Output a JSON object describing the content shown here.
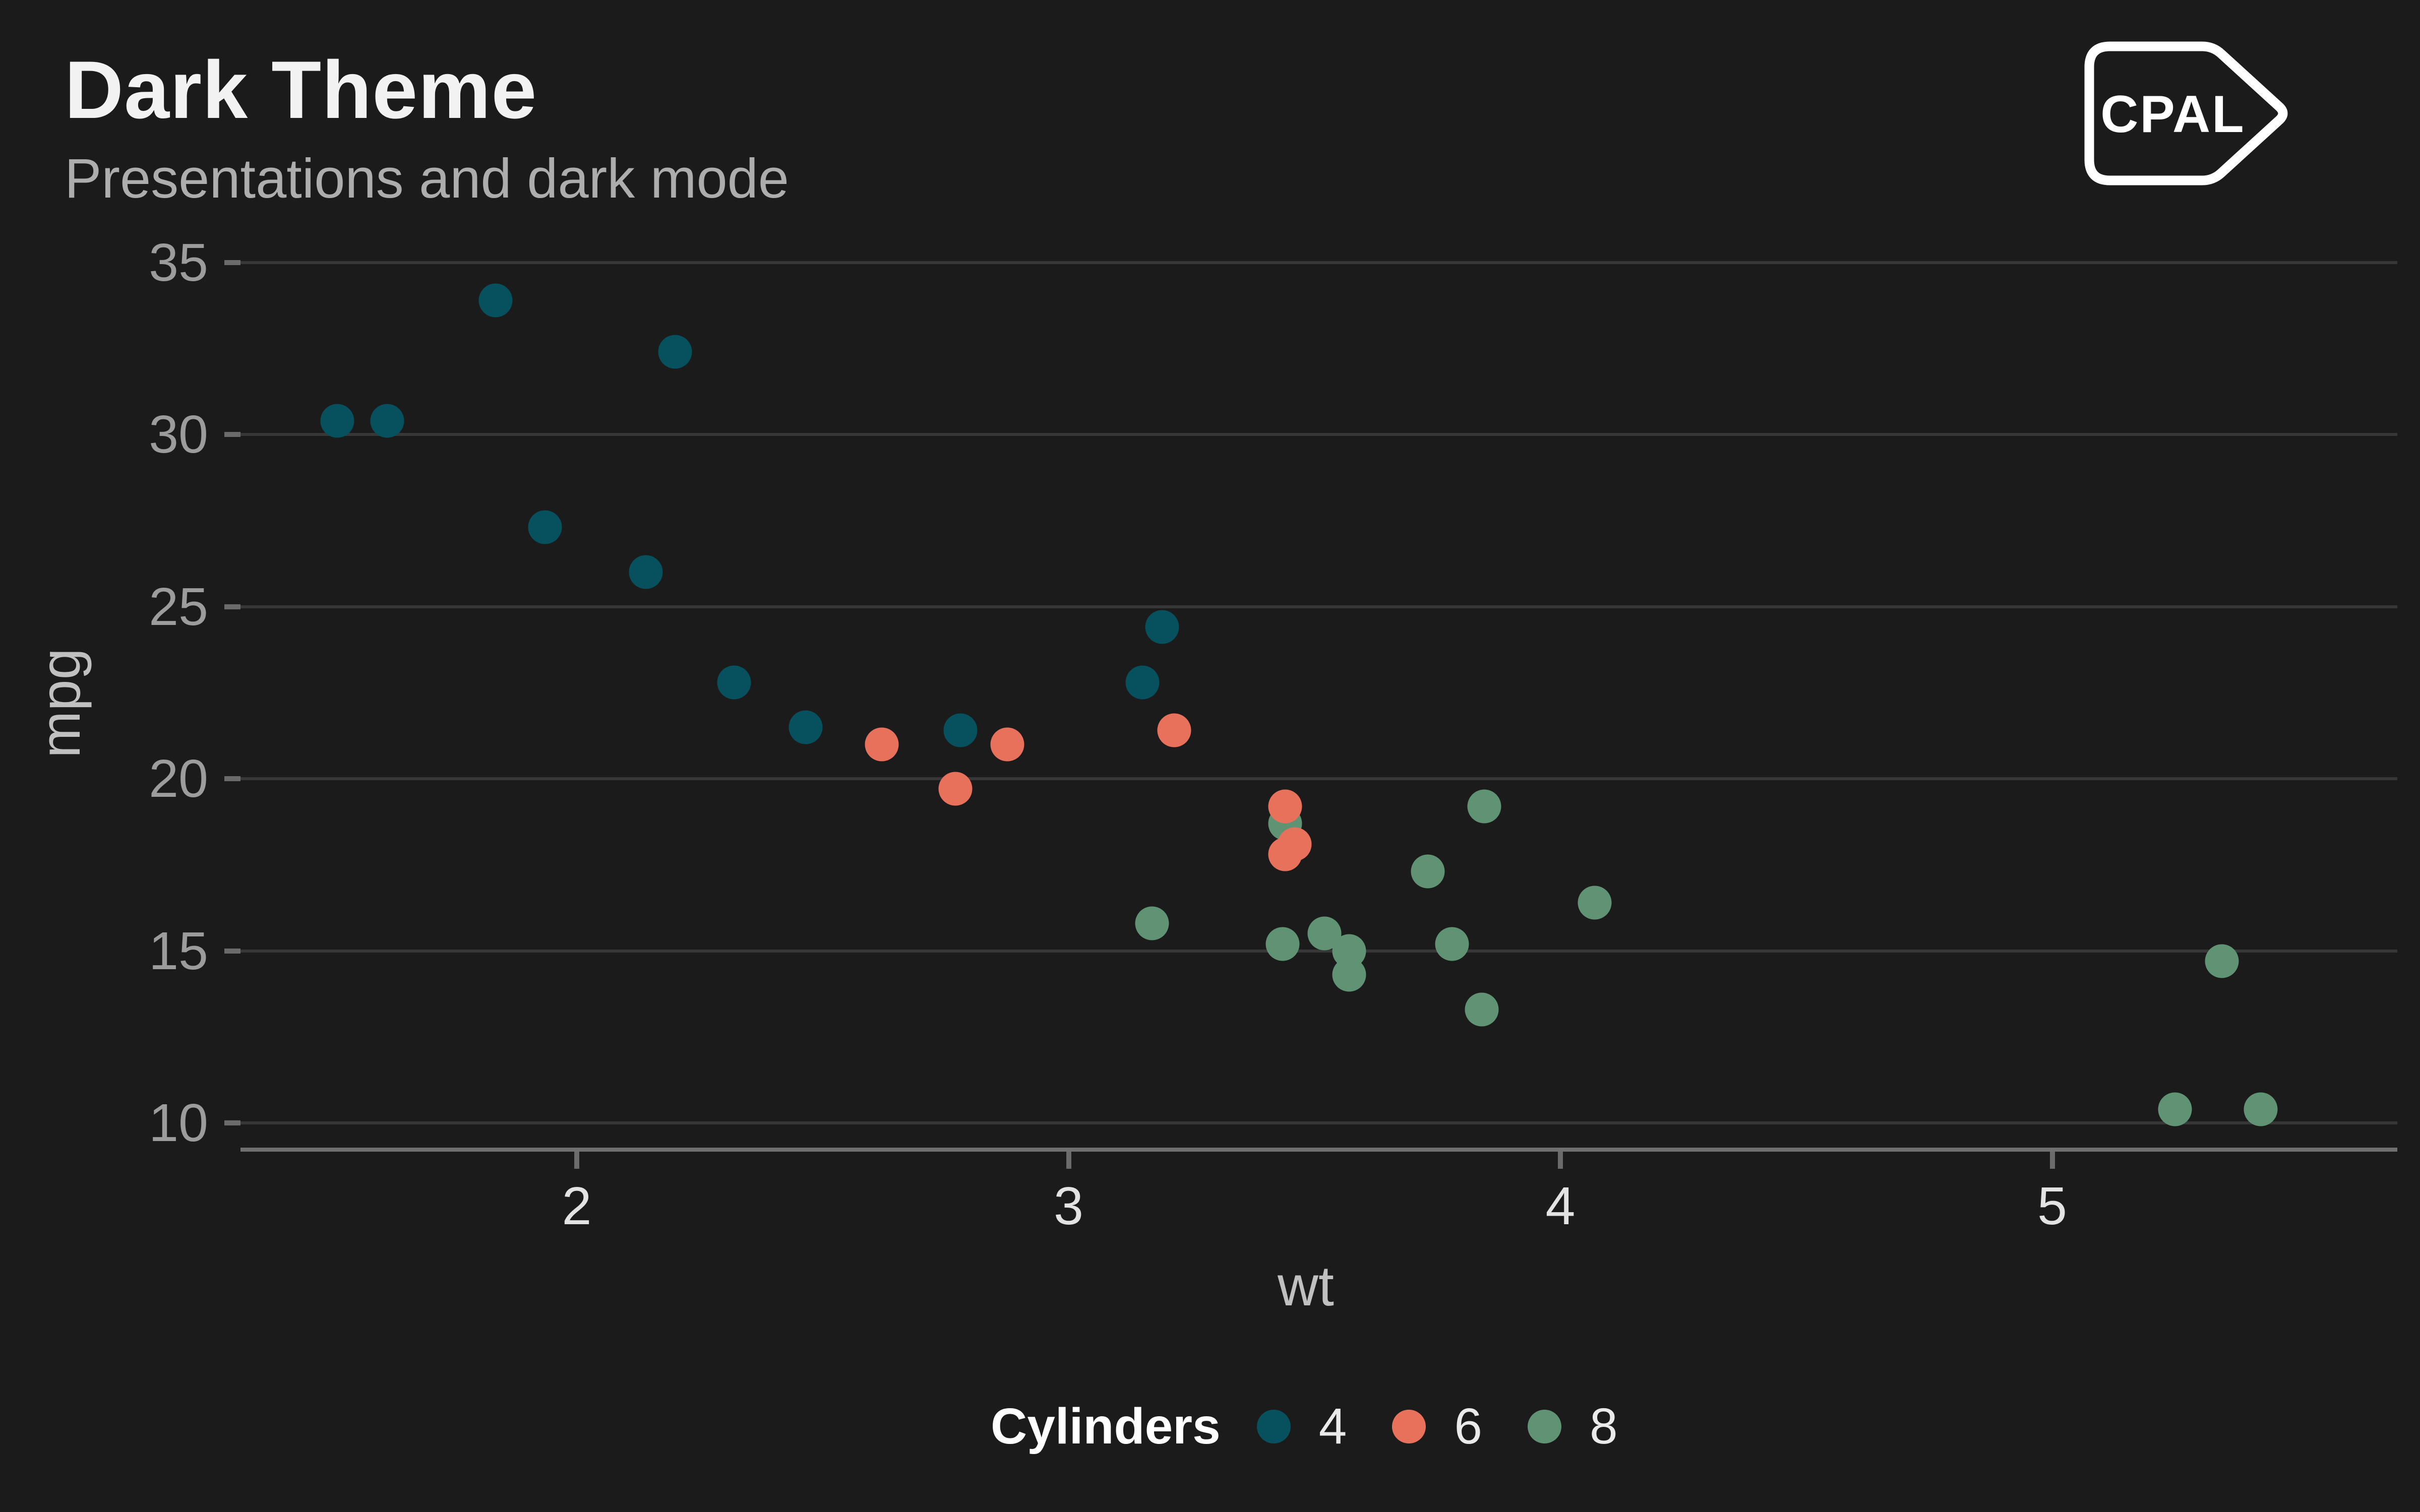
{
  "header": {
    "title": "Dark Theme",
    "subtitle": "Presentations and dark mode"
  },
  "logo": {
    "text": "CPAL"
  },
  "chart_data": {
    "type": "scatter",
    "title": "Dark Theme",
    "subtitle": "Presentations and dark mode",
    "xlabel": "wt",
    "ylabel": "mpg",
    "xlim": [
      1.32,
      5.68
    ],
    "ylim": [
      9.2,
      36.6
    ],
    "x_ticks": [
      2,
      3,
      4,
      5
    ],
    "y_ticks": [
      10,
      15,
      20,
      25,
      30,
      35
    ],
    "grid": "horizontal-major-only",
    "background": "#1b1b1b",
    "gridline_color": "#373737",
    "axis_line_color": "#707070",
    "colors": {
      "4": "#07505E",
      "6": "#E8715B",
      "8": "#5F9374"
    },
    "legend": {
      "title": "Cylinders",
      "position": "bottom",
      "entries": [
        {
          "label": "4",
          "color": "#07505E"
        },
        {
          "label": "6",
          "color": "#E8715B"
        },
        {
          "label": "8",
          "color": "#5F9374"
        }
      ]
    },
    "points": [
      {
        "wt": 2.62,
        "mpg": 21.0,
        "cyl": 6
      },
      {
        "wt": 2.875,
        "mpg": 21.0,
        "cyl": 6
      },
      {
        "wt": 2.32,
        "mpg": 22.8,
        "cyl": 4
      },
      {
        "wt": 3.215,
        "mpg": 21.4,
        "cyl": 6
      },
      {
        "wt": 3.44,
        "mpg": 18.7,
        "cyl": 8
      },
      {
        "wt": 3.46,
        "mpg": 18.1,
        "cyl": 6
      },
      {
        "wt": 3.57,
        "mpg": 14.3,
        "cyl": 8
      },
      {
        "wt": 3.19,
        "mpg": 24.4,
        "cyl": 4
      },
      {
        "wt": 3.15,
        "mpg": 22.8,
        "cyl": 4
      },
      {
        "wt": 3.44,
        "mpg": 19.2,
        "cyl": 6
      },
      {
        "wt": 3.44,
        "mpg": 17.8,
        "cyl": 6
      },
      {
        "wt": 4.07,
        "mpg": 16.4,
        "cyl": 8
      },
      {
        "wt": 3.73,
        "mpg": 17.3,
        "cyl": 8
      },
      {
        "wt": 3.78,
        "mpg": 15.2,
        "cyl": 8
      },
      {
        "wt": 5.25,
        "mpg": 10.4,
        "cyl": 8
      },
      {
        "wt": 5.424,
        "mpg": 10.4,
        "cyl": 8
      },
      {
        "wt": 5.345,
        "mpg": 14.7,
        "cyl": 8
      },
      {
        "wt": 2.2,
        "mpg": 32.4,
        "cyl": 4
      },
      {
        "wt": 1.615,
        "mpg": 30.4,
        "cyl": 4
      },
      {
        "wt": 1.835,
        "mpg": 33.9,
        "cyl": 4
      },
      {
        "wt": 2.465,
        "mpg": 21.5,
        "cyl": 4
      },
      {
        "wt": 3.52,
        "mpg": 15.5,
        "cyl": 8
      },
      {
        "wt": 3.435,
        "mpg": 15.2,
        "cyl": 8
      },
      {
        "wt": 3.84,
        "mpg": 13.3,
        "cyl": 8
      },
      {
        "wt": 3.845,
        "mpg": 19.2,
        "cyl": 8
      },
      {
        "wt": 1.935,
        "mpg": 27.3,
        "cyl": 4
      },
      {
        "wt": 2.14,
        "mpg": 26.0,
        "cyl": 4
      },
      {
        "wt": 1.513,
        "mpg": 30.4,
        "cyl": 4
      },
      {
        "wt": 3.17,
        "mpg": 15.8,
        "cyl": 8
      },
      {
        "wt": 2.77,
        "mpg": 19.7,
        "cyl": 6
      },
      {
        "wt": 3.57,
        "mpg": 15.0,
        "cyl": 8
      },
      {
        "wt": 2.78,
        "mpg": 21.4,
        "cyl": 4
      }
    ]
  }
}
